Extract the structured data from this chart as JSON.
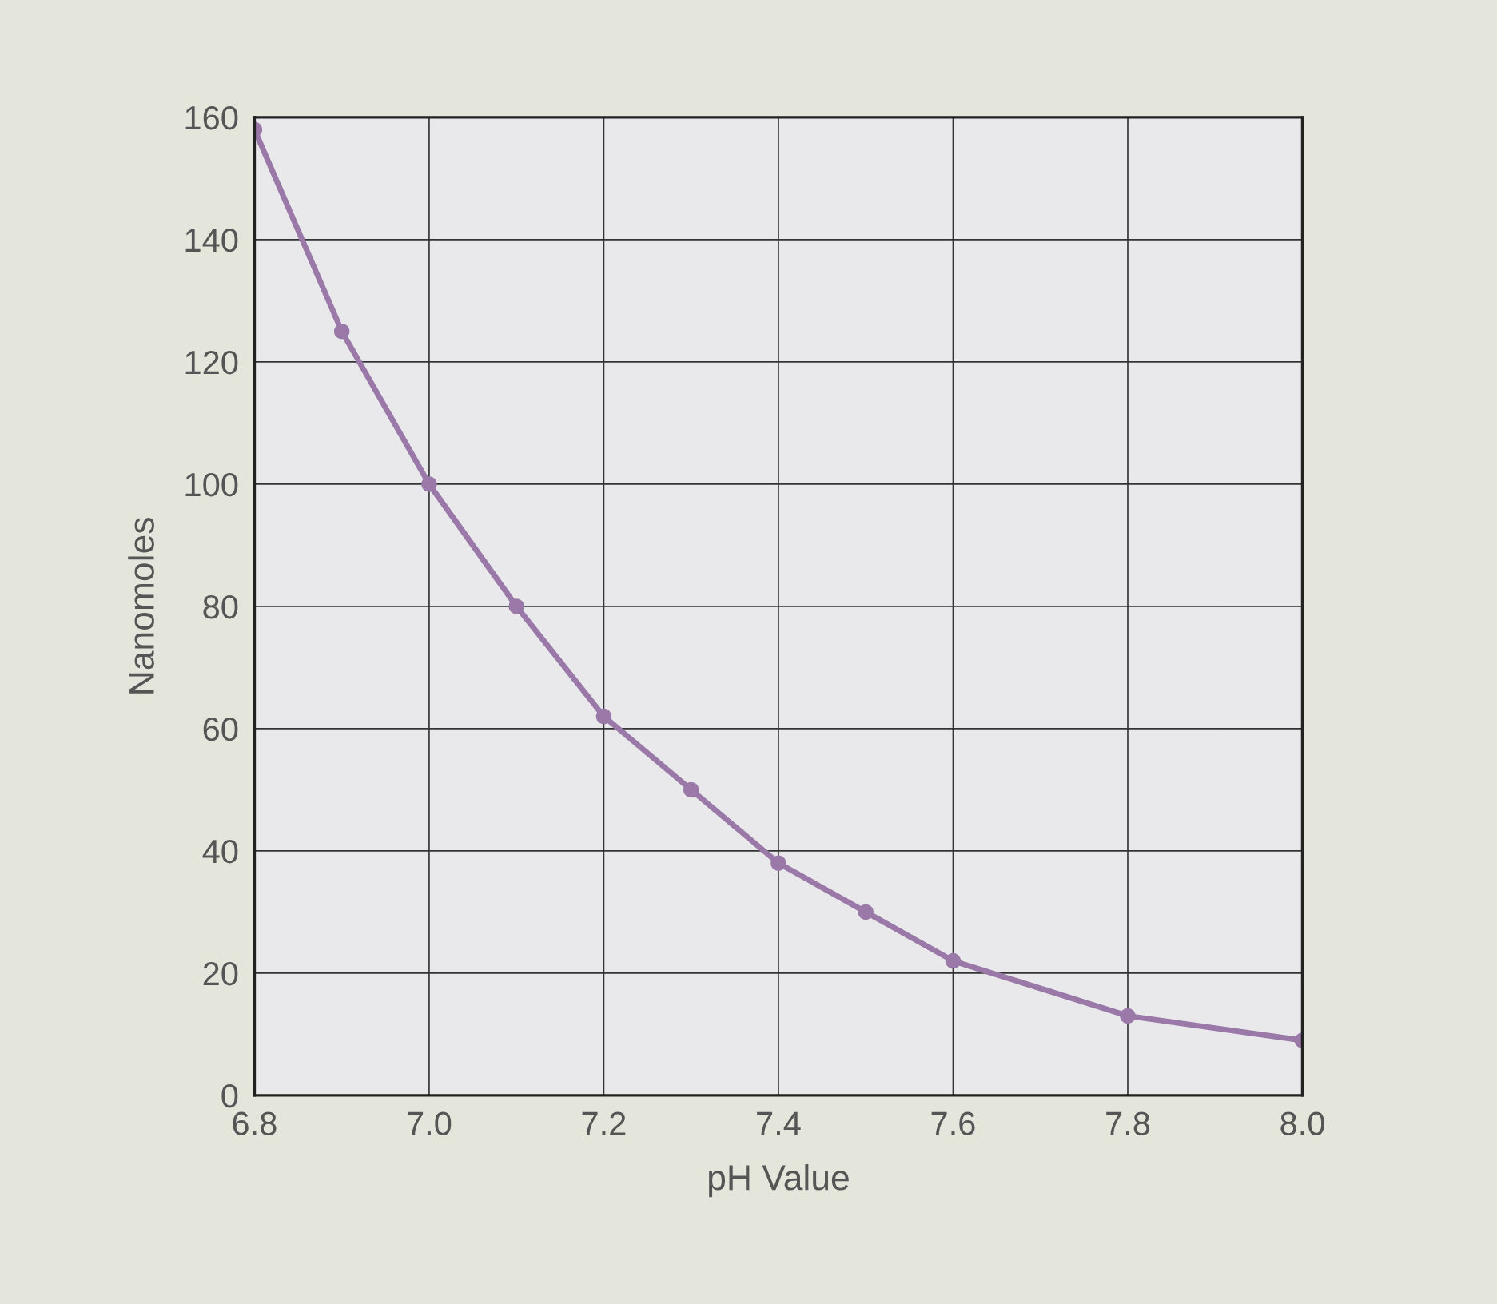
{
  "chart_data": {
    "type": "line",
    "xlabel": "pH Value",
    "ylabel": "Nanomoles",
    "x": [
      6.8,
      6.9,
      7.0,
      7.1,
      7.2,
      7.3,
      7.4,
      7.5,
      7.6,
      7.8,
      8.0
    ],
    "series": [
      {
        "color": "#9a78a8",
        "values": [
          158,
          125,
          100,
          80,
          62,
          50,
          38,
          30,
          22,
          13,
          9
        ]
      }
    ],
    "xlim": [
      6.8,
      8.0
    ],
    "xticks": [
      {
        "value": 6.8,
        "label": "6.8"
      },
      {
        "value": 7.0,
        "label": "7.0"
      },
      {
        "value": 7.2,
        "label": "7.2"
      },
      {
        "value": 7.4,
        "label": "7.4"
      },
      {
        "value": 7.6,
        "label": "7.6"
      },
      {
        "value": 7.8,
        "label": "7.8"
      },
      {
        "value": 8.0,
        "label": "8.0"
      }
    ],
    "ylim": [
      0,
      160
    ],
    "yticks": [
      0,
      20,
      40,
      60,
      80,
      100,
      120,
      140,
      160
    ],
    "grid": true,
    "marker": "circle",
    "line_style": "solid"
  }
}
